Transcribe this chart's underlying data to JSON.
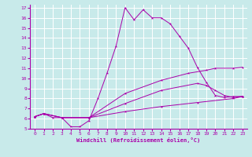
{
  "title": "",
  "xlabel": "Windchill (Refroidissement éolien,°C)",
  "ylabel": "",
  "bg_color": "#c8eaea",
  "line_color": "#aa00aa",
  "grid_color": "#ffffff",
  "xlim": [
    -0.5,
    23.5
  ],
  "ylim": [
    5,
    17.3
  ],
  "xticks": [
    0,
    1,
    2,
    3,
    4,
    5,
    6,
    7,
    8,
    9,
    10,
    11,
    12,
    13,
    14,
    15,
    16,
    17,
    18,
    19,
    20,
    21,
    22,
    23
  ],
  "yticks": [
    5,
    6,
    7,
    8,
    9,
    10,
    11,
    12,
    13,
    14,
    15,
    16,
    17
  ],
  "series": [
    {
      "x": [
        0,
        1,
        2,
        3,
        4,
        5,
        6,
        7,
        8,
        9,
        10,
        11,
        12,
        13,
        14,
        15,
        16,
        17,
        18,
        19,
        20,
        21,
        22,
        23
      ],
      "y": [
        6.2,
        6.5,
        6.1,
        6.1,
        5.2,
        5.2,
        5.8,
        8.0,
        10.5,
        13.2,
        17.0,
        15.8,
        16.8,
        16.0,
        16.0,
        15.4,
        14.2,
        13.0,
        11.1,
        9.6,
        8.3,
        8.1,
        8.2,
        8.2
      ]
    },
    {
      "x": [
        0,
        1,
        3,
        6,
        10,
        14,
        17,
        19,
        20,
        22,
        23
      ],
      "y": [
        6.2,
        6.5,
        6.1,
        6.1,
        8.5,
        9.8,
        10.5,
        10.8,
        11.0,
        11.0,
        11.1
      ]
    },
    {
      "x": [
        0,
        1,
        3,
        6,
        10,
        14,
        18,
        19,
        20,
        21,
        22,
        23
      ],
      "y": [
        6.2,
        6.5,
        6.1,
        6.1,
        7.5,
        8.8,
        9.5,
        9.3,
        8.8,
        8.3,
        8.1,
        8.2
      ]
    },
    {
      "x": [
        0,
        1,
        3,
        6,
        10,
        14,
        18,
        22,
        23
      ],
      "y": [
        6.2,
        6.5,
        6.1,
        6.1,
        6.7,
        7.2,
        7.6,
        8.0,
        8.2
      ]
    }
  ]
}
